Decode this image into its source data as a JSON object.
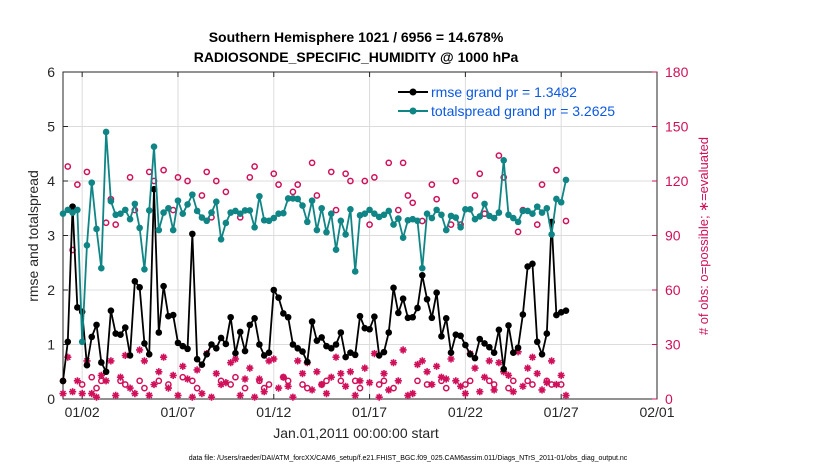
{
  "chart_data": {
    "type": "line",
    "title_line1": "Southern Hemisphere 1021 / 6956 = 14.678%",
    "title_line2": "RADIOSONDE_SPECIFIC_HUMIDITY @ 1000 hPa",
    "xlabel": "Jan.01,2011 00:00:00 start",
    "ylabel": "rmse and totalspread",
    "y2label": "# of obs: o=possible; ∗=evaluated",
    "footer": "data file: /Users/raeder/DAI/ATM_forcXX/CAM6_setup/f.e21.FHIST_BGC.f09_025.CAM6assim.011/Diags_NTrS_2011-01/obs_diag_output.nc",
    "xlim": [
      0,
      31
    ],
    "ylim": [
      0,
      6
    ],
    "y2lim": [
      0,
      180
    ],
    "x_ticks": [
      1,
      6,
      11,
      16,
      21,
      26,
      31
    ],
    "x_tick_labels": [
      "01/02",
      "01/07",
      "01/12",
      "01/17",
      "01/22",
      "01/27",
      "02/01"
    ],
    "y_ticks": [
      "0",
      "1",
      "2",
      "3",
      "4",
      "5",
      "6"
    ],
    "y2_ticks": [
      "0",
      "30",
      "60",
      "90",
      "120",
      "150",
      "180"
    ],
    "series": [
      {
        "name": "rmse",
        "legend": "rmse grand pr = 1.3482",
        "color": "#000000",
        "step": 0.25,
        "values": [
          0.33,
          1.05,
          3.53,
          1.68,
          1.6,
          0.62,
          1.14,
          1.36,
          0.67,
          0.5,
          1.62,
          1.2,
          1.18,
          1.31,
          0.8,
          2.16,
          2.05,
          1.02,
          0.82,
          3.85,
          1.22,
          2.07,
          1.52,
          1.54,
          1.03,
          0.97,
          0.92,
          3.03,
          0.73,
          0.63,
          0.82,
          1.0,
          0.93,
          1.12,
          1.01,
          1.5,
          0.84,
          1.23,
          0.88,
          1.36,
          1.48,
          1.0,
          0.8,
          0.85,
          2.0,
          1.86,
          1.57,
          1.5,
          1.0,
          0.93,
          0.87,
          0.68,
          1.42,
          1.07,
          1.13,
          0.97,
          0.93,
          1.0,
          1.22,
          0.77,
          0.85,
          0.81,
          1.52,
          1.3,
          1.28,
          1.51,
          0.8,
          0.86,
          1.22,
          2.04,
          1.58,
          1.84,
          1.49,
          1.5,
          1.67,
          2.27,
          1.83,
          1.49,
          1.95,
          1.15,
          1.48,
          0.85,
          1.18,
          1.16,
          0.99,
          0.82,
          0.75,
          1.1,
          1.02,
          0.95,
          0.85,
          1.27,
          0.55,
          1.35,
          0.85,
          0.94,
          1.55,
          2.43,
          2.48,
          1.05,
          0.82,
          1.2,
          3.25,
          1.54,
          1.59,
          1.62
        ]
      },
      {
        "name": "totalspread",
        "legend": "totalspread grand pr = 3.2625",
        "color": "#0f8585",
        "step": 0.25,
        "values": [
          3.4,
          3.47,
          3.42,
          3.47,
          1.05,
          2.82,
          3.97,
          3.12,
          2.4,
          4.9,
          3.63,
          3.38,
          3.4,
          3.47,
          3.3,
          3.58,
          3.14,
          2.38,
          3.46,
          4.63,
          3.1,
          3.42,
          3.5,
          3.1,
          3.64,
          3.4,
          3.57,
          3.75,
          3.45,
          3.33,
          3.27,
          3.42,
          3.62,
          2.93,
          3.23,
          3.42,
          3.45,
          3.4,
          3.46,
          3.46,
          3.15,
          3.72,
          3.28,
          3.27,
          3.32,
          3.4,
          3.41,
          3.68,
          3.68,
          3.67,
          3.55,
          3.25,
          3.64,
          3.1,
          3.5,
          3.06,
          3.4,
          2.74,
          3.27,
          3.02,
          3.48,
          2.34,
          3.37,
          3.4,
          3.47,
          3.4,
          3.34,
          3.38,
          3.45,
          3.2,
          3.31,
          2.96,
          3.28,
          3.3,
          3.27,
          2.4,
          3.4,
          3.32,
          3.47,
          3.38,
          3.1,
          3.36,
          3.33,
          3.15,
          3.48,
          3.48,
          3.3,
          3.35,
          3.58,
          3.36,
          3.32,
          3.42,
          4.38,
          3.38,
          3.32,
          3.25,
          3.45,
          3.45,
          3.4,
          3.53,
          3.42,
          3.5,
          3.02,
          3.67,
          3.61,
          4.02
        ]
      },
      {
        "name": "possible",
        "marker": "circle",
        "color": "#d0105a",
        "axis": "right",
        "step": 0.25,
        "values": [
          10,
          128,
          82,
          118,
          8,
          125,
          12,
          6,
          10,
          97,
          110,
          96,
          10,
          8,
          122,
          104,
          10,
          6,
          125,
          120,
          10,
          126,
          8,
          104,
          122,
          12,
          120,
          10,
          6,
          112,
          125,
          100,
          120,
          10,
          114,
          8,
          12,
          100,
          6,
          122,
          128,
          10,
          6,
          8,
          124,
          118,
          12,
          10,
          114,
          118,
          8,
          6,
          130,
          112,
          8,
          10,
          125,
          104,
          10,
          124,
          120,
          10,
          6,
          120,
          96,
          122,
          8,
          10,
          130,
          6,
          104,
          130,
          112,
          108,
          10,
          98,
          8,
          118,
          110,
          10,
          6,
          96,
          120,
          96,
          8,
          10,
          112,
          124,
          102,
          10,
          8,
          134,
          122,
          6,
          10,
          92,
          104,
          10,
          8,
          96,
          118,
          10,
          8,
          126,
          8,
          98
        ]
      },
      {
        "name": "evaluated",
        "marker": "asterisk",
        "color": "#d0105a",
        "axis": "right",
        "step": 0.25,
        "values": [
          3,
          23,
          4,
          10,
          3,
          21,
          3,
          1,
          13,
          10,
          21,
          2,
          12,
          24,
          6,
          3,
          27,
          21,
          2,
          8,
          15,
          23,
          6,
          13,
          2,
          18,
          11,
          1,
          16,
          3,
          25,
          1,
          14,
          8,
          9,
          20,
          22,
          2,
          11,
          17,
          1,
          11,
          4,
          21,
          22,
          6,
          12,
          7,
          1,
          21,
          14,
          20,
          5,
          15,
          8,
          3,
          12,
          23,
          14,
          7,
          15,
          2,
          10,
          17,
          9,
          25,
          1,
          14,
          5,
          20,
          10,
          27,
          2,
          3,
          19,
          21,
          15,
          8,
          18,
          12,
          11,
          22,
          10,
          7,
          3,
          25,
          17,
          4,
          12,
          21,
          5,
          20,
          15,
          13,
          4,
          26,
          7,
          17,
          23,
          14,
          5,
          9,
          21,
          8,
          13,
          2
        ]
      }
    ]
  }
}
